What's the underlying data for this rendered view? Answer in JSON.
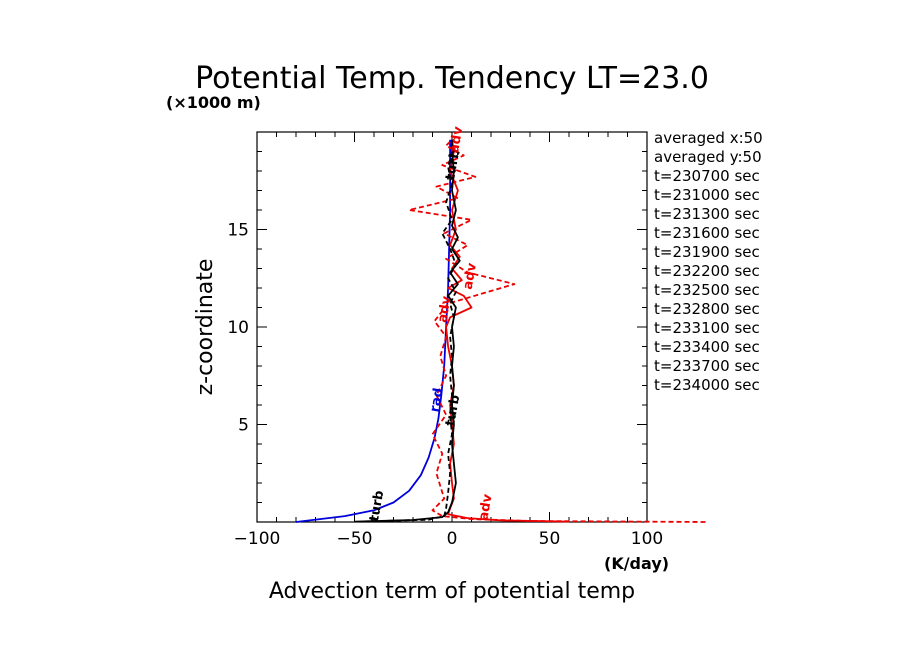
{
  "chart_data": {
    "type": "line",
    "title": "Potential Temp. Tendency LT=23.0",
    "xlabel": "Advection term of potential temp",
    "x_unit": "(K/day)",
    "ylabel": "z-coordinate",
    "y_unit": "(×1000 m)",
    "xlim": [
      -100,
      100
    ],
    "ylim": [
      0,
      20
    ],
    "xticks": [
      "−100",
      "−50",
      "0",
      "50",
      "100"
    ],
    "yticks": [
      "5",
      "10",
      "15"
    ],
    "grid": false,
    "info_lines": [
      "averaged  x:50",
      "averaged  y:50",
      "t=230700 sec",
      "t=231000 sec",
      "t=231300 sec",
      "t=231600 sec",
      "t=231900 sec",
      "t=232200 sec",
      "t=232500 sec",
      "t=232800 sec",
      "t=233100 sec",
      "t=233400 sec",
      "t=233700 sec",
      "t=234000 sec"
    ],
    "series": [
      {
        "name": "rad",
        "color": "#0000dd",
        "dash": "solid",
        "points": [
          [
            -80,
            0.0
          ],
          [
            -55,
            0.3
          ],
          [
            -40,
            0.6
          ],
          [
            -30,
            1.0
          ],
          [
            -22,
            1.6
          ],
          [
            -16,
            2.4
          ],
          [
            -12,
            3.3
          ],
          [
            -9,
            4.3
          ],
          [
            -7,
            5.3
          ],
          [
            -5.5,
            6.5
          ],
          [
            -4,
            8
          ],
          [
            -3,
            10
          ],
          [
            -2,
            12
          ],
          [
            -1.5,
            14
          ],
          [
            -1,
            16
          ],
          [
            -1,
            18
          ],
          [
            -1,
            19.6
          ]
        ]
      },
      {
        "name": "adv",
        "color": "#ee0000",
        "dash": "solid",
        "points": [
          [
            60,
            0.02
          ],
          [
            25,
            0.08
          ],
          [
            8,
            0.2
          ],
          [
            -2,
            0.4
          ],
          [
            -1,
            0.7
          ],
          [
            1,
            1.2
          ],
          [
            0,
            2
          ],
          [
            -1,
            3
          ],
          [
            1,
            4
          ],
          [
            0,
            5
          ],
          [
            -1,
            6
          ],
          [
            1,
            7
          ],
          [
            0,
            8
          ],
          [
            -2,
            9
          ],
          [
            -3,
            10
          ],
          [
            -1,
            10.5
          ],
          [
            10,
            11
          ],
          [
            6,
            11.6
          ],
          [
            -2,
            12
          ],
          [
            5,
            12.4
          ],
          [
            0,
            13
          ],
          [
            4,
            13.6
          ],
          [
            -1,
            14.2
          ],
          [
            2,
            15
          ],
          [
            0,
            16
          ],
          [
            3,
            17
          ],
          [
            -1,
            18
          ],
          [
            1,
            19
          ],
          [
            0,
            19.6
          ]
        ]
      },
      {
        "name": "adv",
        "color": "#ee0000",
        "dash": "dashed",
        "points": [
          [
            130,
            0.0
          ],
          [
            40,
            0.05
          ],
          [
            10,
            0.15
          ],
          [
            -5,
            0.3
          ],
          [
            -10,
            0.6
          ],
          [
            -4,
            1.2
          ],
          [
            -8,
            2.5
          ],
          [
            -5,
            3.5
          ],
          [
            -10,
            4.5
          ],
          [
            -3,
            5.5
          ],
          [
            -8,
            6.5
          ],
          [
            -3,
            7.5
          ],
          [
            -6,
            8.5
          ],
          [
            -3,
            9.5
          ],
          [
            -9,
            10.3
          ],
          [
            -2,
            11.2
          ],
          [
            32,
            12.2
          ],
          [
            8,
            12.8
          ],
          [
            -3,
            13.5
          ],
          [
            8,
            14.2
          ],
          [
            -4,
            14.8
          ],
          [
            10,
            15.5
          ],
          [
            -22,
            16
          ],
          [
            3,
            16.6
          ],
          [
            -8,
            17.2
          ],
          [
            12,
            17.7
          ],
          [
            -5,
            18.3
          ],
          [
            6,
            18.8
          ],
          [
            -3,
            19.3
          ],
          [
            0,
            19.6
          ]
        ]
      },
      {
        "name": "turb",
        "color": "#000000",
        "dash": "solid",
        "points": [
          [
            -50,
            0.02
          ],
          [
            -20,
            0.1
          ],
          [
            -5,
            0.25
          ],
          [
            -2,
            0.5
          ],
          [
            0,
            1
          ],
          [
            2,
            2
          ],
          [
            1,
            3
          ],
          [
            0,
            4
          ],
          [
            1,
            5
          ],
          [
            0,
            6
          ],
          [
            1,
            7
          ],
          [
            0,
            8
          ],
          [
            1,
            9
          ],
          [
            0,
            10
          ],
          [
            2,
            11
          ],
          [
            -2,
            11.6
          ],
          [
            3,
            12.2
          ],
          [
            -1,
            12.8
          ],
          [
            4,
            13.4
          ],
          [
            0,
            14
          ],
          [
            3,
            14.6
          ],
          [
            0,
            15.2
          ],
          [
            2,
            16
          ],
          [
            0,
            17
          ],
          [
            1,
            18
          ],
          [
            0,
            19
          ],
          [
            0,
            19.6
          ]
        ]
      },
      {
        "name": "turb",
        "color": "#000000",
        "dash": "dashed",
        "points": [
          [
            -45,
            0.03
          ],
          [
            -12,
            0.12
          ],
          [
            -4,
            0.3
          ],
          [
            -3,
            0.7
          ],
          [
            -2,
            1.5
          ],
          [
            -1,
            2.5
          ],
          [
            -2,
            3.5
          ],
          [
            0,
            4.5
          ],
          [
            -1,
            5.5
          ],
          [
            0,
            6.5
          ],
          [
            -1,
            7.5
          ],
          [
            0,
            8.5
          ],
          [
            -1,
            9.5
          ],
          [
            1,
            10.5
          ],
          [
            -1,
            11.2
          ],
          [
            2,
            11.8
          ],
          [
            -2,
            12.5
          ],
          [
            2,
            13.2
          ],
          [
            -1,
            14
          ],
          [
            -5,
            14.8
          ],
          [
            0,
            15.5
          ],
          [
            -3,
            16.4
          ],
          [
            0,
            17.3
          ],
          [
            -2,
            18.2
          ],
          [
            0,
            19
          ],
          [
            0,
            19.6
          ]
        ]
      }
    ],
    "curve_labels": [
      {
        "text": "rad",
        "color": "#0000dd",
        "x": -7,
        "y": 5.6
      },
      {
        "text": "adv",
        "color": "#ee0000",
        "x": 10,
        "y": 11.9
      },
      {
        "text": "adv",
        "color": "#ee0000",
        "x": 18,
        "y": 0.05
      },
      {
        "text": "turb",
        "color": "#000000",
        "x": 1,
        "y": 4.9
      },
      {
        "text": "turb",
        "color": "#000000",
        "x": -38,
        "y": 0.0
      },
      {
        "text": "turb",
        "color": "#000000",
        "x": 1,
        "y": 17.5
      },
      {
        "text": "adv",
        "color": "#ee0000",
        "x": 3,
        "y": 18.9
      },
      {
        "text": "adv",
        "color": "#ee0000",
        "x": -3,
        "y": 10.2
      }
    ]
  }
}
